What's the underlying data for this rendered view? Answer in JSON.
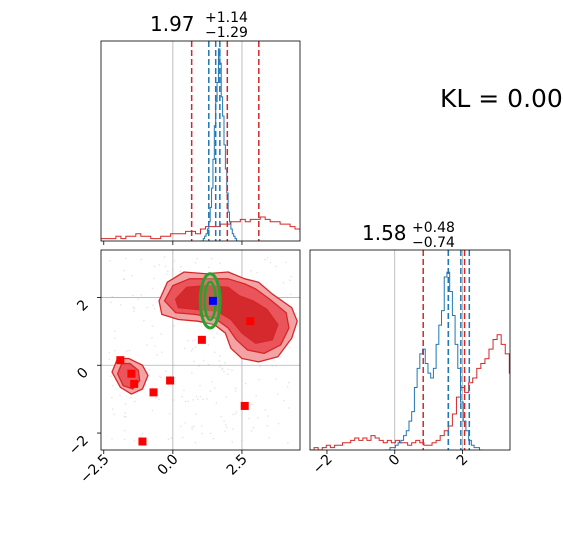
{
  "annotation": {
    "kl_text": "KL = 0.00"
  },
  "colors": {
    "red": "#d62728",
    "red_fill_dark": "#d62728",
    "red_fill_light": "#f08080",
    "blue": "#1f77b4",
    "green": "#2ca02c",
    "marker": "#ff0000",
    "grid": "#b0b0b0"
  },
  "chart_data": [
    {
      "type": "histogram",
      "panel": "marginal-x",
      "title": {
        "value": "1.97",
        "plus": "+1.14",
        "minus": "−1.29"
      },
      "xlim": [
        -2.6,
        4.6
      ],
      "grid_x": [
        0,
        2.5
      ],
      "red_quantiles": [
        0.68,
        1.97,
        3.11
      ],
      "blue_quantiles": [
        1.3,
        1.55,
        1.7
      ],
      "red_hist": {
        "start": -2.6,
        "width": 0.18,
        "counts": [
          1,
          1,
          1,
          2,
          1,
          2,
          2,
          3,
          2,
          2,
          1,
          1,
          2,
          2,
          3,
          3,
          3,
          4,
          4,
          3,
          5,
          6,
          6,
          6,
          7,
          7,
          8,
          8,
          9,
          8,
          9,
          9,
          10,
          9,
          8,
          8,
          7,
          7,
          6,
          5,
          4,
          3,
          2,
          2,
          1,
          1,
          1,
          1,
          1,
          0
        ]
      },
      "blue_hist": {
        "start": 1.0,
        "width": 0.05,
        "counts": [
          0,
          0,
          1,
          2,
          3,
          5,
          8,
          14,
          22,
          34,
          48,
          58,
          66,
          80,
          74,
          60,
          52,
          40,
          30,
          20,
          12,
          8,
          5,
          3,
          2,
          1,
          0,
          0
        ]
      },
      "max_count": 80
    },
    {
      "type": "contour",
      "panel": "joint",
      "xlim": [
        -2.6,
        4.6
      ],
      "ylim": [
        -2.5,
        3.4
      ],
      "x_ticks": [
        "−2.5",
        "0.0",
        "2.5"
      ],
      "x_tick_values": [
        -2.5,
        0.0,
        2.5
      ],
      "y_ticks": [
        "−2",
        "0",
        "2"
      ],
      "y_tick_values": [
        -2,
        0,
        2
      ],
      "grid_x": [
        0,
        2.5
      ],
      "grid_y": [
        0,
        2
      ],
      "red_markers": [
        {
          "x": -1.9,
          "y": 0.15
        },
        {
          "x": -1.5,
          "y": -0.25
        },
        {
          "x": -1.4,
          "y": -0.55
        },
        {
          "x": -0.7,
          "y": -0.8
        },
        {
          "x": -0.1,
          "y": -0.45
        },
        {
          "x": 1.05,
          "y": 0.75
        },
        {
          "x": 2.8,
          "y": 1.3
        },
        {
          "x": 2.6,
          "y": -1.2
        },
        {
          "x": -1.1,
          "y": -2.25
        }
      ],
      "blue_marker": {
        "x": 1.45,
        "y": 1.9
      },
      "green_ellipse": {
        "cx": 1.35,
        "cy": 1.9,
        "rx": 0.36,
        "ry": 0.8
      },
      "red_regions": [
        {
          "kind": "outer",
          "points": [
            [
              -0.5,
              1.9
            ],
            [
              -0.2,
              2.45
            ],
            [
              0.4,
              2.75
            ],
            [
              1.2,
              2.7
            ],
            [
              2.0,
              2.75
            ],
            [
              2.6,
              2.55
            ],
            [
              3.1,
              2.45
            ],
            [
              3.6,
              2.1
            ],
            [
              4.3,
              1.7
            ],
            [
              4.5,
              1.3
            ],
            [
              4.3,
              0.8
            ],
            [
              3.8,
              0.25
            ],
            [
              3.1,
              0.1
            ],
            [
              2.5,
              0.2
            ],
            [
              2.1,
              0.5
            ],
            [
              1.9,
              0.95
            ],
            [
              1.5,
              1.2
            ],
            [
              0.9,
              1.3
            ],
            [
              0.2,
              1.35
            ],
            [
              -0.4,
              1.5
            ]
          ]
        },
        {
          "kind": "middle",
          "points": [
            [
              -0.3,
              1.9
            ],
            [
              0.0,
              2.35
            ],
            [
              0.6,
              2.55
            ],
            [
              1.2,
              2.55
            ],
            [
              2.0,
              2.55
            ],
            [
              2.6,
              2.4
            ],
            [
              3.0,
              2.25
            ],
            [
              3.5,
              1.95
            ],
            [
              4.1,
              1.55
            ],
            [
              4.2,
              1.1
            ],
            [
              3.9,
              0.6
            ],
            [
              3.3,
              0.35
            ],
            [
              2.7,
              0.45
            ],
            [
              2.3,
              0.75
            ],
            [
              2.0,
              1.1
            ],
            [
              1.5,
              1.4
            ],
            [
              0.8,
              1.5
            ],
            [
              0.1,
              1.55
            ]
          ]
        },
        {
          "kind": "inner",
          "points": [
            [
              0.1,
              1.95
            ],
            [
              0.5,
              2.3
            ],
            [
              1.2,
              2.35
            ],
            [
              2.0,
              2.3
            ],
            [
              2.4,
              2.05
            ],
            [
              2.9,
              1.9
            ],
            [
              3.4,
              1.65
            ],
            [
              3.8,
              1.2
            ],
            [
              3.6,
              0.75
            ],
            [
              3.0,
              0.65
            ],
            [
              2.5,
              0.95
            ],
            [
              2.1,
              1.35
            ],
            [
              1.6,
              1.6
            ],
            [
              0.8,
              1.65
            ],
            [
              0.2,
              1.7
            ]
          ]
        },
        {
          "kind": "outer",
          "points": [
            [
              -2.2,
              -0.2
            ],
            [
              -2.0,
              0.2
            ],
            [
              -1.6,
              0.2
            ],
            [
              -1.1,
              0.0
            ],
            [
              -0.9,
              -0.3
            ],
            [
              -1.1,
              -0.7
            ],
            [
              -1.5,
              -0.85
            ],
            [
              -1.9,
              -0.65
            ]
          ]
        },
        {
          "kind": "middle",
          "points": [
            [
              -2.0,
              -0.25
            ],
            [
              -1.85,
              0.05
            ],
            [
              -1.55,
              0.05
            ],
            [
              -1.25,
              -0.15
            ],
            [
              -1.2,
              -0.45
            ],
            [
              -1.45,
              -0.7
            ],
            [
              -1.8,
              -0.6
            ]
          ]
        }
      ]
    },
    {
      "type": "histogram",
      "panel": "marginal-y",
      "title": {
        "value": "1.58",
        "plus": "+0.48",
        "minus": "−0.74"
      },
      "xlim": [
        -2.5,
        3.4
      ],
      "x_ticks": [
        "−2",
        "0",
        "2"
      ],
      "x_tick_values": [
        -2,
        0,
        2
      ],
      "grid_x": [
        0,
        2
      ],
      "red_quantiles": [
        0.84,
        1.58,
        2.06
      ],
      "blue_quantiles": [
        1.58,
        1.95,
        2.2
      ],
      "red_hist": {
        "start": -2.5,
        "width": 0.12,
        "counts": [
          0,
          1,
          0,
          1,
          2,
          1,
          2,
          2,
          3,
          3,
          4,
          5,
          4,
          5,
          4,
          6,
          5,
          4,
          3,
          4,
          3,
          4,
          3,
          3,
          2,
          3,
          4,
          3,
          2,
          2,
          3,
          4,
          6,
          8,
          10,
          15,
          22,
          26,
          24,
          28,
          30,
          34,
          36,
          38,
          42,
          46,
          48,
          44,
          40,
          32,
          28,
          22,
          14,
          10,
          7,
          4,
          3,
          2,
          1,
          1
        ]
      },
      "blue_hist": {
        "start": -0.3,
        "width": 0.08,
        "counts": [
          0,
          0,
          1,
          1,
          2,
          3,
          4,
          6,
          8,
          12,
          16,
          26,
          34,
          40,
          42,
          36,
          32,
          30,
          34,
          44,
          52,
          58,
          72,
          74,
          66,
          56,
          44,
          34,
          20,
          12,
          8,
          4,
          2,
          1,
          1,
          0
        ]
      },
      "max_count": 80
    }
  ]
}
